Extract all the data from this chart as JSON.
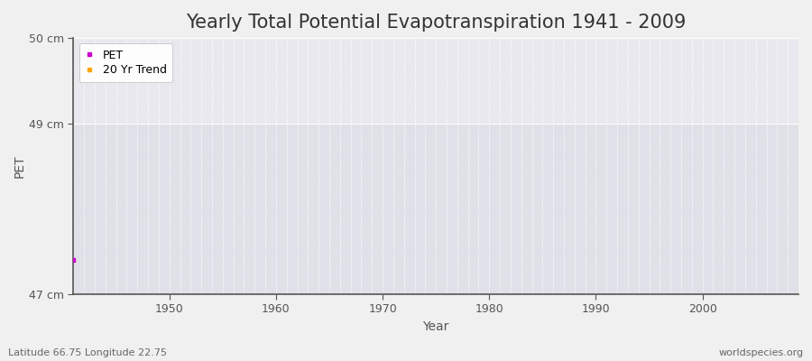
{
  "title": "Yearly Total Potential Evapotranspiration 1941 - 2009",
  "xlabel": "Year",
  "ylabel": "PET",
  "xlim": [
    1941,
    2009
  ],
  "ylim": [
    47,
    50
  ],
  "yticks": [
    47,
    49,
    50
  ],
  "ytick_labels": [
    "47 cm",
    "49 cm",
    "50 cm"
  ],
  "xticks": [
    1950,
    1960,
    1970,
    1980,
    1990,
    2000
  ],
  "figure_bg": "#f0f0f0",
  "plot_bg_top": "#e8e8ee",
  "plot_bg_bottom": "#e0e0e8",
  "grid_color": "#ffffff",
  "pet_color": "#cc00cc",
  "trend_color": "#ffa500",
  "pet_data_x": [
    1941
  ],
  "pet_data_y": [
    47.4
  ],
  "legend_labels": [
    "PET",
    "20 Yr Trend"
  ],
  "footnote_left": "Latitude 66.75 Longitude 22.75",
  "footnote_right": "worldspecies.org",
  "title_fontsize": 15,
  "axis_label_fontsize": 10,
  "tick_fontsize": 9,
  "footnote_fontsize": 8,
  "spine_color": "#555555"
}
